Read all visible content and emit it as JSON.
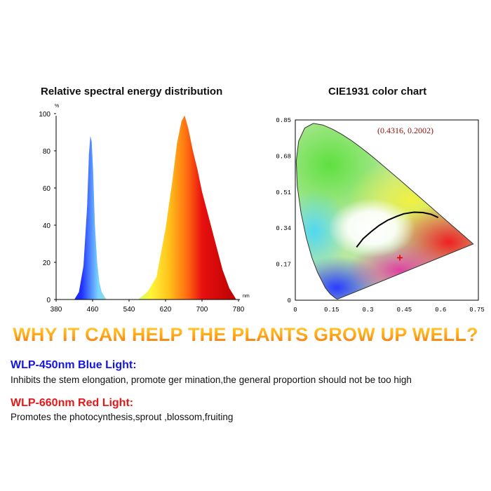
{
  "chart_data": [
    {
      "type": "area",
      "title": "Relative spectral energy distribution",
      "xlabel": "nm",
      "ylabel": "%",
      "xlim": [
        380,
        780
      ],
      "ylim": [
        0,
        100
      ],
      "x_ticks": [
        "380",
        "460",
        "540",
        "620",
        "700",
        "780"
      ],
      "y_ticks": [
        "0",
        "20",
        "40",
        "60",
        "80",
        "100"
      ],
      "series": [
        {
          "x": [
            420,
            430,
            440,
            448,
            452,
            455,
            458,
            461,
            465,
            470,
            475,
            480,
            490
          ],
          "y": [
            0,
            4,
            18,
            50,
            78,
            88,
            85,
            70,
            40,
            20,
            9,
            4,
            0
          ]
        },
        {
          "x": [
            560,
            580,
            600,
            620,
            635,
            645,
            655,
            662,
            670,
            680,
            690,
            700,
            715,
            730,
            745,
            760,
            775
          ],
          "y": [
            0,
            4,
            12,
            38,
            64,
            84,
            96,
            99,
            92,
            80,
            70,
            58,
            44,
            30,
            16,
            6,
            0
          ]
        }
      ]
    },
    {
      "type": "scatter",
      "title": "CIE1931 color chart",
      "xlim": [
        0,
        0.75
      ],
      "ylim": [
        0,
        0.85
      ],
      "x_ticks": [
        "0",
        "0.15",
        "0.3",
        "0.45",
        "0.6",
        "0.75"
      ],
      "y_ticks": [
        "0",
        "0.17",
        "0.34",
        "0.51",
        "0.68",
        "0.85"
      ],
      "annotation": "(0.4316, 0.2002)",
      "point": {
        "x": 0.4316,
        "y": 0.2002
      }
    }
  ],
  "headline": "WHY IT CAN HELP THE PLANTS GROW UP WELL?",
  "blue_heading": "WLP-450nm Blue Light:",
  "blue_text": "Inhibits the stem elongation, promote ger mination,the general proportion should not be too high",
  "red_heading": "WLP-660nm Red Light:",
  "red_text": "Promotes the photocynthesis,sprout ,blossom,fruiting"
}
